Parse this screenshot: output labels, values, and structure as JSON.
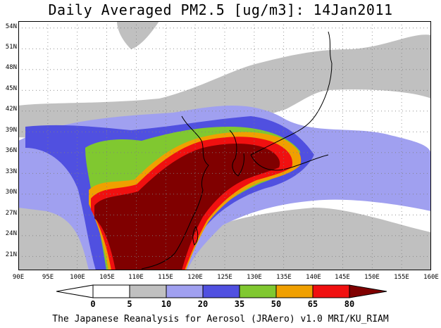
{
  "title": "Daily Averaged PM2.5 [ug/m3]: 14Jan2011",
  "credit": "The Japanese Reanalysis for Aerosol (JRAero) v1.0 MRI/KU_RIAM",
  "map": {
    "lon_range": [
      90,
      160
    ],
    "lat_range": [
      19.5,
      55.5
    ],
    "lat_ticks": [
      "54N",
      "51N",
      "48N",
      "45N",
      "42N",
      "39N",
      "36N",
      "33N",
      "30N",
      "27N",
      "24N",
      "21N"
    ],
    "lon_ticks": [
      "90E",
      "95E",
      "100E",
      "105E",
      "110E",
      "115E",
      "120E",
      "125E",
      "130E",
      "135E",
      "140E",
      "145E",
      "150E",
      "155E",
      "160E"
    ]
  },
  "colorbar": {
    "labels": [
      "0",
      "5",
      "10",
      "20",
      "35",
      "50",
      "65",
      "80"
    ],
    "colors": [
      "#ffffff",
      "#c0c0c0",
      "#a0a0f0",
      "#5050e0",
      "#80c830",
      "#f0a000",
      "#f01010",
      "#800000"
    ]
  }
}
